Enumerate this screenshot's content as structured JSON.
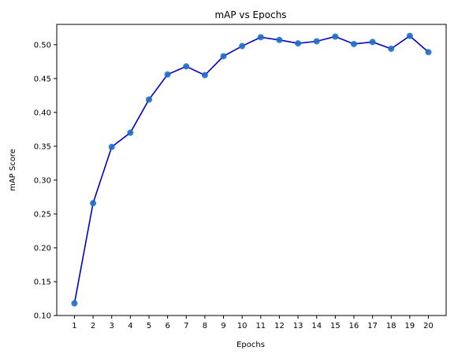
{
  "chart_data": {
    "type": "line",
    "title": "mAP vs Epochs",
    "xlabel": "Epochs",
    "ylabel": "mAP Score",
    "x": [
      1,
      2,
      3,
      4,
      5,
      6,
      7,
      8,
      9,
      10,
      11,
      12,
      13,
      14,
      15,
      16,
      17,
      18,
      19,
      20
    ],
    "series": [
      {
        "values": [
          0.118,
          0.266,
          0.349,
          0.37,
          0.419,
          0.456,
          0.468,
          0.455,
          0.483,
          0.498,
          0.511,
          0.507,
          0.502,
          0.505,
          0.512,
          0.501,
          0.504,
          0.494,
          0.513,
          0.489
        ],
        "line_color": "#0000cc",
        "marker_color": "#1f6fc4"
      }
    ],
    "xticks": [
      "1",
      "2",
      "3",
      "4",
      "5",
      "6",
      "7",
      "8",
      "9",
      "10",
      "11",
      "12",
      "13",
      "14",
      "15",
      "16",
      "17",
      "18",
      "19",
      "20"
    ],
    "yticks": [
      "0.10",
      "0.15",
      "0.20",
      "0.25",
      "0.30",
      "0.35",
      "0.40",
      "0.45",
      "0.50"
    ],
    "ylim": [
      0.1,
      0.53
    ],
    "xlim": [
      0.05,
      20.95
    ],
    "grid": false,
    "legend": false
  }
}
